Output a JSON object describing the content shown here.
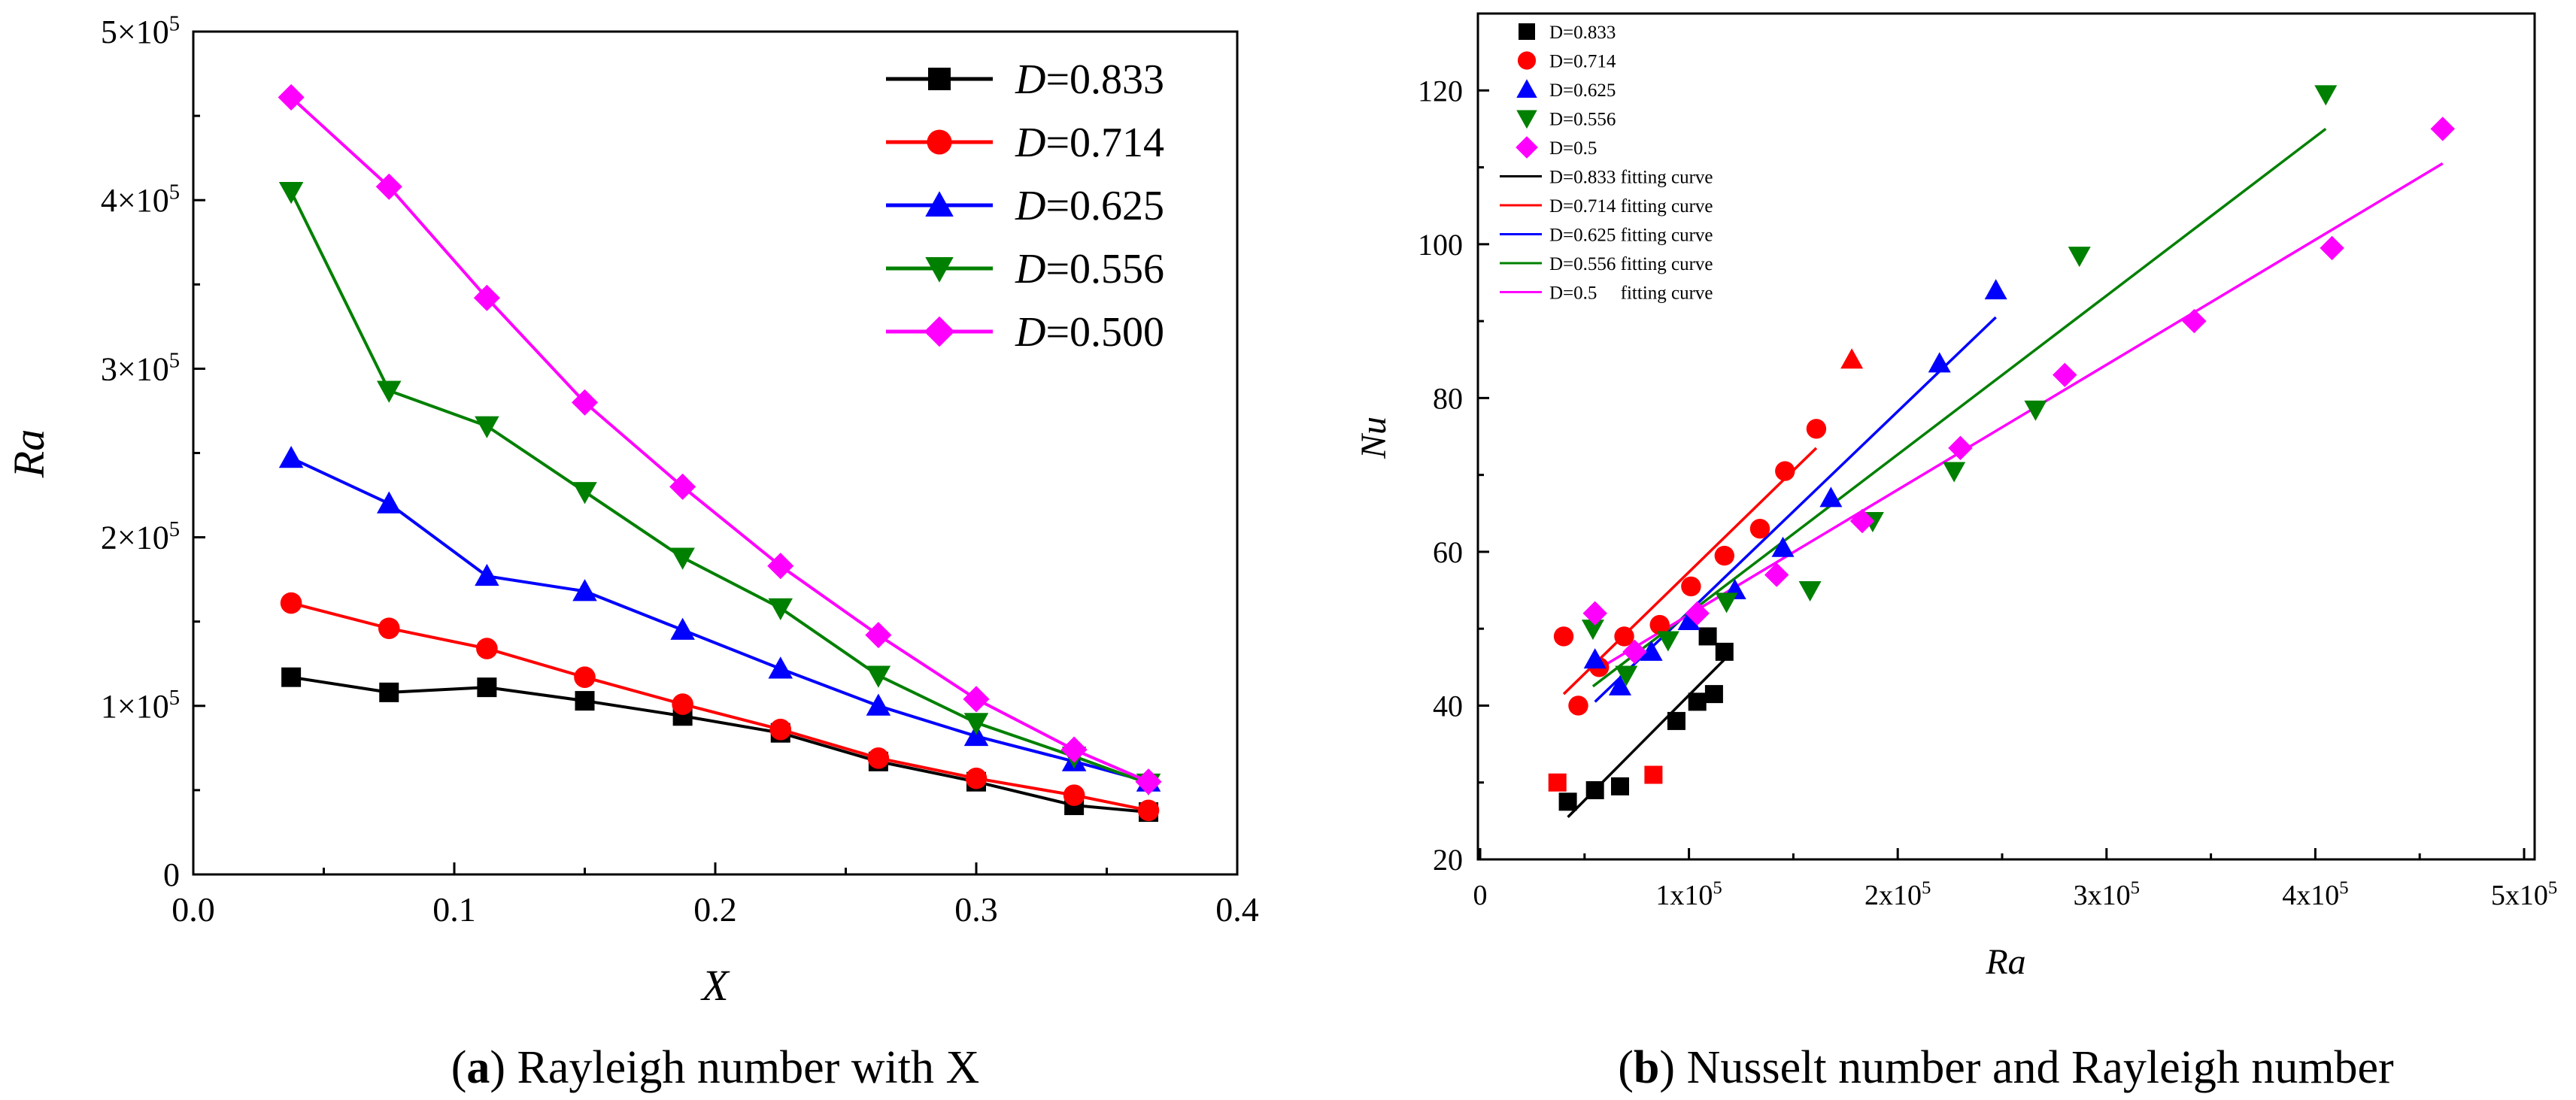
{
  "chart_data": [
    {
      "type": "line",
      "panel_label": "a",
      "caption": "Rayleigh number with X",
      "xlabel": "X",
      "ylabel": "Ra",
      "xlim": [
        0.0,
        0.4
      ],
      "ylim": [
        0,
        500000
      ],
      "x_ticks": [
        "0.0",
        "0.1",
        "0.2",
        "0.3",
        "0.4"
      ],
      "y_ticks": [
        {
          "value": 0,
          "label": "0"
        },
        {
          "value": 100000,
          "label": "1×10",
          "exp": "5"
        },
        {
          "value": 200000,
          "label": "2×10",
          "exp": "5"
        },
        {
          "value": 300000,
          "label": "3×10",
          "exp": "5"
        },
        {
          "value": 400000,
          "label": "4×10",
          "exp": "5"
        },
        {
          "value": 500000,
          "label": "5×10",
          "exp": "5"
        }
      ],
      "legend_position": "top-right",
      "grid": false,
      "x": [
        0.0375,
        0.075,
        0.1125,
        0.15,
        0.1875,
        0.225,
        0.2625,
        0.3,
        0.3375,
        0.366
      ],
      "series": [
        {
          "name": "D=0.833",
          "legend_var": "D",
          "legend_val": "=0.833",
          "color": "#000000",
          "marker": "square",
          "values": [
            117000,
            108000,
            111000,
            103000,
            94000,
            84000,
            67000,
            55000,
            41000,
            37000
          ]
        },
        {
          "name": "D=0.714",
          "legend_var": "D",
          "legend_val": "=0.714",
          "color": "#ff0000",
          "marker": "circle",
          "values": [
            161000,
            146000,
            134000,
            117000,
            101000,
            86000,
            69000,
            57000,
            47000,
            38000
          ]
        },
        {
          "name": "D=0.625",
          "legend_var": "D",
          "legend_val": "=0.625",
          "color": "#0000ff",
          "marker": "triangle-up",
          "values": [
            247000,
            220000,
            177000,
            168000,
            145000,
            122000,
            100000,
            82000,
            67000,
            55000
          ]
        },
        {
          "name": "D=0.556",
          "legend_var": "D",
          "legend_val": "=0.556",
          "color": "#008000",
          "marker": "triangle-down",
          "values": [
            405000,
            287000,
            266000,
            227000,
            188000,
            158000,
            118000,
            90000,
            70000,
            54000
          ]
        },
        {
          "name": "D=0.500",
          "legend_var": "D",
          "legend_val": "=0.500",
          "color": "#ff00ff",
          "marker": "diamond",
          "values": [
            461000,
            408000,
            342000,
            280000,
            230000,
            183000,
            142000,
            104000,
            74000,
            55000
          ]
        }
      ]
    },
    {
      "type": "scatter",
      "panel_label": "b",
      "caption": "Nusselt number and Rayleigh number",
      "xlabel": "Ra",
      "ylabel": "Nu",
      "xlim": [
        0,
        500000
      ],
      "ylim": [
        20,
        130
      ],
      "x_ticks": [
        {
          "value": 0,
          "label": "0"
        },
        {
          "value": 100000,
          "label": "1x10",
          "exp": "5"
        },
        {
          "value": 200000,
          "label": "2x10",
          "exp": "5"
        },
        {
          "value": 300000,
          "label": "3x10",
          "exp": "5"
        },
        {
          "value": 400000,
          "label": "4x10",
          "exp": "5"
        },
        {
          "value": 500000,
          "label": "5x10",
          "exp": "5"
        }
      ],
      "y_ticks": [
        20,
        40,
        60,
        80,
        100,
        120
      ],
      "legend_position": "top-left",
      "grid": false,
      "series": [
        {
          "name": "D=0.833",
          "color": "#000000",
          "marker": "square",
          "points": [
            [
              42000,
              27.5
            ],
            [
              55000,
              29
            ],
            [
              67000,
              29.5
            ],
            [
              94000,
              38
            ],
            [
              104000,
              40.5
            ],
            [
              109000,
              49
            ],
            [
              112000,
              41.5
            ],
            [
              117000,
              47
            ]
          ]
        },
        {
          "name": "D=0.714",
          "color": "#ff0000",
          "marker": "circle",
          "points": [
            [
              40000,
              49
            ],
            [
              47000,
              40
            ],
            [
              57000,
              45
            ],
            [
              69000,
              49
            ],
            [
              86000,
              50.5
            ],
            [
              101000,
              55.5
            ],
            [
              117000,
              59.5
            ],
            [
              134000,
              63
            ],
            [
              146000,
              70.5
            ],
            [
              161000,
              76
            ]
          ]
        },
        {
          "name": "D=0.625",
          "color": "#0000ff",
          "marker": "triangle-up",
          "points": [
            [
              55000,
              46
            ],
            [
              67000,
              42.5
            ],
            [
              82000,
              47
            ],
            [
              100000,
              51
            ],
            [
              122000,
              55
            ],
            [
              145000,
              60.5
            ],
            [
              168000,
              67
            ],
            [
              220000,
              84.5
            ],
            [
              247000,
              94
            ]
          ]
        },
        {
          "name": "D=0.556",
          "color": "#008000",
          "marker": "triangle-down",
          "points": [
            [
              54000,
              50
            ],
            [
              70000,
              44
            ],
            [
              90000,
              48.5
            ],
            [
              118000,
              53.5
            ],
            [
              158000,
              55
            ],
            [
              188000,
              64
            ],
            [
              227000,
              70.5
            ],
            [
              266000,
              78.5
            ],
            [
              287000,
              98.5
            ],
            [
              405000,
              119.5
            ]
          ]
        },
        {
          "name": "D=0.5",
          "color": "#ff00ff",
          "marker": "diamond",
          "points": [
            [
              55000,
              52
            ],
            [
              74000,
              47
            ],
            [
              104000,
              52
            ],
            [
              142000,
              57
            ],
            [
              183000,
              64
            ],
            [
              230000,
              73.5
            ],
            [
              280000,
              83
            ],
            [
              342000,
              90
            ],
            [
              408000,
              99.5
            ],
            [
              461000,
              115
            ]
          ]
        }
      ],
      "stray_markers": [
        {
          "color": "#ff0000",
          "marker": "square",
          "point": [
            37000,
            30
          ]
        },
        {
          "color": "#ff0000",
          "marker": "square",
          "point": [
            83000,
            31
          ]
        },
        {
          "color": "#ff0000",
          "marker": "triangle-up",
          "point": [
            178000,
            85
          ]
        }
      ],
      "fitting_curves": [
        {
          "name": "D=0.833 fitting curve",
          "color": "#000000",
          "from": [
            42000,
            25.5
          ],
          "to": [
            117000,
            46
          ]
        },
        {
          "name": "D=0.714 fitting curve",
          "color": "#ff0000",
          "from": [
            40000,
            41.5
          ],
          "to": [
            161000,
            73.5
          ]
        },
        {
          "name": "D=0.625 fitting curve",
          "color": "#0000ff",
          "from": [
            55000,
            40.5
          ],
          "to": [
            247000,
            90.5
          ]
        },
        {
          "name": "D=0.556 fitting curve",
          "color": "#008000",
          "from": [
            54000,
            42.5
          ],
          "to": [
            405000,
            115
          ]
        },
        {
          "name": "D=0.5     fitting curve",
          "color": "#ff00ff",
          "from": [
            55000,
            44.5
          ],
          "to": [
            461000,
            110.5
          ]
        }
      ]
    }
  ]
}
